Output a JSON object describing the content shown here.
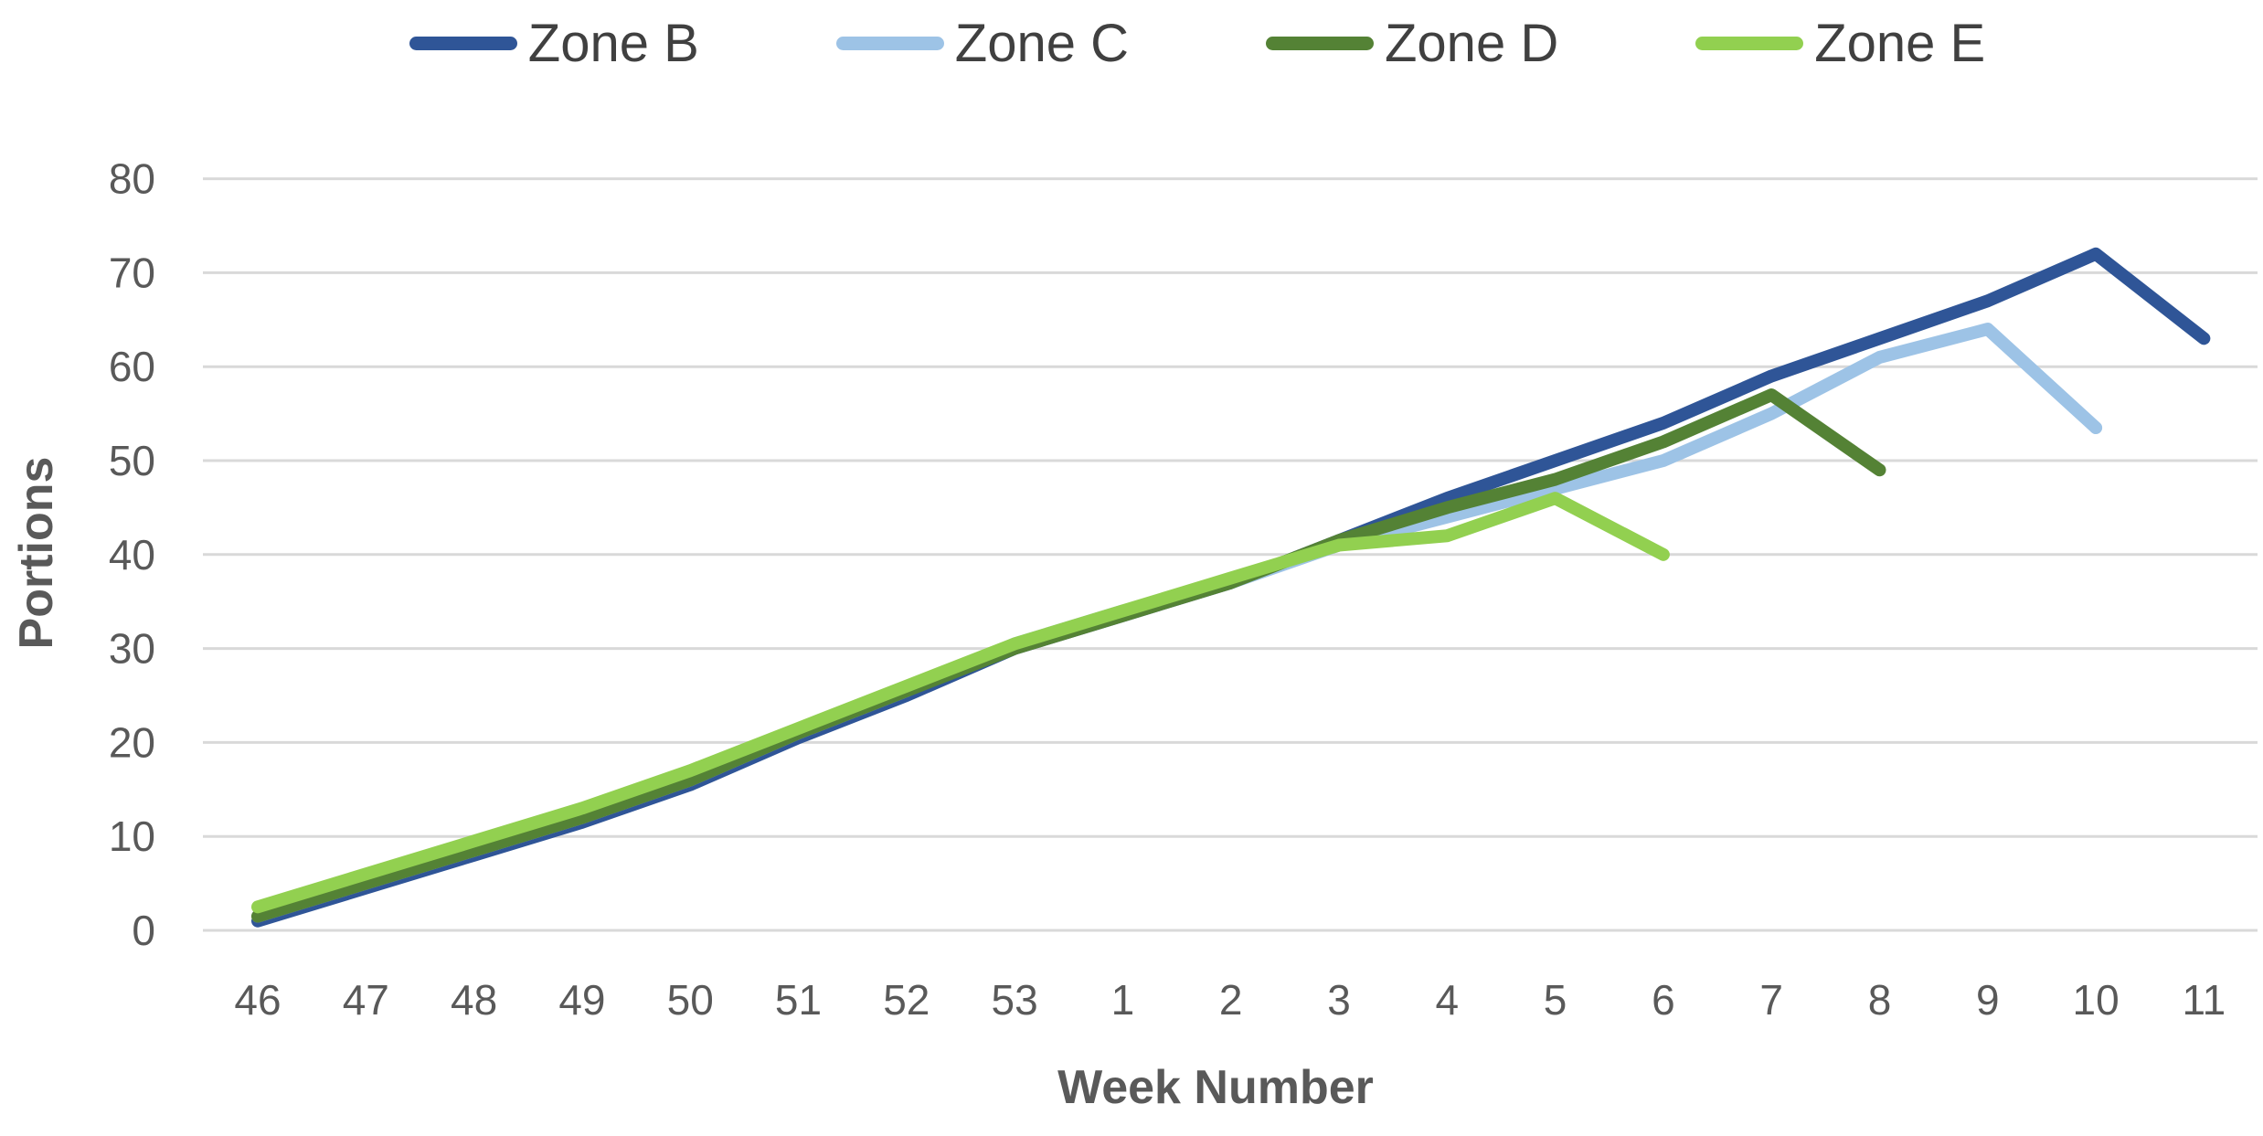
{
  "page": {
    "background": "#FFFFFF"
  },
  "chart_data": {
    "type": "line",
    "title": "",
    "xlabel": "Week Number",
    "ylabel": "Portions",
    "ylim": [
      0,
      80
    ],
    "yticks": [
      0,
      10,
      20,
      30,
      40,
      50,
      60,
      70,
      80
    ],
    "grid": "horizontal",
    "gridline_color": "#D9D9D9",
    "tick_label_color": "#595959",
    "axis_title_color": "#595959",
    "legend_text_color": "#404040",
    "legend_position": "top",
    "categories": [
      "46",
      "47",
      "48",
      "49",
      "50",
      "51",
      "52",
      "53",
      "1",
      "2",
      "3",
      "4",
      "5",
      "6",
      "7",
      "8",
      "9",
      "10",
      "11"
    ],
    "series": [
      {
        "name": "Zone B",
        "color": "#2F5597",
        "values": [
          1,
          4.5,
          8,
          11.5,
          15.5,
          20.5,
          25,
          30,
          33.5,
          37,
          41.5,
          46,
          50,
          54,
          59,
          63,
          67,
          72,
          63
        ]
      },
      {
        "name": "Zone C",
        "color": "#9DC3E6",
        "values": [
          1.5,
          5,
          8.5,
          12,
          16,
          21,
          25.5,
          30.5,
          34,
          37,
          41,
          44,
          47,
          50,
          55,
          61,
          64,
          53.5,
          null
        ]
      },
      {
        "name": "Zone D",
        "color": "#548235",
        "values": [
          1.5,
          5,
          8.5,
          12,
          16,
          21,
          25.5,
          30,
          33.5,
          37,
          41.5,
          45,
          48,
          52,
          57,
          49,
          null,
          null,
          null
        ]
      },
      {
        "name": "Zone E",
        "color": "#92D050",
        "values": [
          2.5,
          6,
          9.5,
          13,
          17,
          21.5,
          26,
          30.5,
          34,
          37.5,
          41,
          42,
          46,
          40,
          null,
          null,
          null,
          null,
          null
        ]
      }
    ]
  }
}
